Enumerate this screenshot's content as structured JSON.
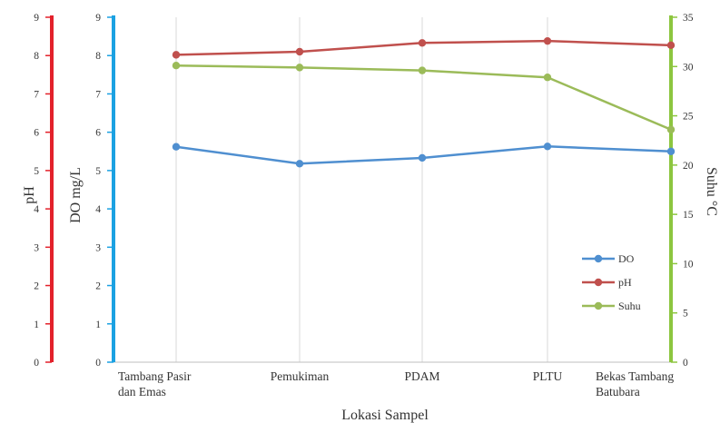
{
  "chart_data": {
    "type": "line",
    "categories": [
      [
        "Tambang Pasir",
        "dan Emas"
      ],
      [
        "Pemukiman"
      ],
      [
        "PDAM"
      ],
      [
        "PLTU"
      ],
      [
        "Bekas Tambang",
        "Batubara"
      ]
    ],
    "xlabel": "Lokasi Sampel",
    "axes": {
      "ph": {
        "label": "pH",
        "range": [
          0,
          9
        ],
        "ticks": [
          "0",
          "1",
          "2",
          "3",
          "4",
          "5",
          "6",
          "7",
          "8",
          "9"
        ],
        "color": "#e3212b"
      },
      "do": {
        "label": "DO mg/L",
        "range": [
          0,
          9
        ],
        "ticks": [
          "0",
          "1",
          "2",
          "3",
          "4",
          "5",
          "6",
          "7",
          "8",
          "9"
        ],
        "color": "#1ba1e2"
      },
      "suhu": {
        "label": "Suhu °C",
        "range": [
          0,
          35
        ],
        "ticks": [
          "0",
          "5",
          "10",
          "15",
          "20",
          "25",
          "30",
          "35"
        ],
        "color": "#8dc63f"
      }
    },
    "series": [
      {
        "name": "DO",
        "axis": "do",
        "color": "#4f8fd0",
        "values": [
          5.62,
          5.18,
          5.33,
          5.63,
          5.5
        ]
      },
      {
        "name": "pH",
        "axis": "do",
        "color": "#c0504d",
        "values": [
          8.02,
          8.1,
          8.33,
          8.38,
          8.27
        ]
      },
      {
        "name": "Suhu",
        "axis": "suhu",
        "color": "#9bbb59",
        "values": [
          30.1,
          29.9,
          29.6,
          28.9,
          23.6
        ]
      }
    ],
    "grid": "vertical",
    "legend_position": "right"
  }
}
